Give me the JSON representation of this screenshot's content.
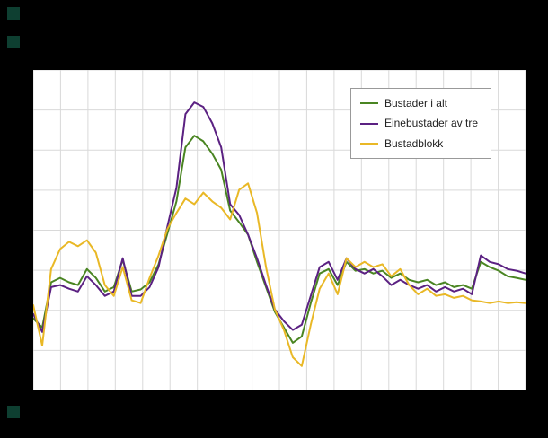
{
  "chart_data": {
    "type": "line",
    "title": "",
    "xlabel": "",
    "ylabel": "",
    "x_description": "time index, 56 evenly spaced points; no axis tick labels visible in the image",
    "ylim": [
      0,
      8
    ],
    "grid": {
      "show": true,
      "x_divisions": 18,
      "y_divisions": 8,
      "color": "#d9d9d9"
    },
    "legend_position": "top-right-inside",
    "series": [
      {
        "name": "Bustader i alt",
        "color": "#4a8522",
        "values": [
          1.8,
          1.57,
          2.7,
          2.81,
          2.7,
          2.63,
          3.03,
          2.81,
          2.47,
          2.58,
          3.26,
          2.47,
          2.52,
          2.7,
          3.15,
          3.93,
          4.72,
          6.07,
          6.36,
          6.22,
          5.91,
          5.51,
          4.49,
          4.2,
          3.89,
          3.21,
          2.58,
          1.96,
          1.57,
          1.19,
          1.35,
          2.18,
          2.92,
          3.03,
          2.63,
          3.21,
          2.99,
          3.03,
          2.92,
          2.99,
          2.81,
          2.92,
          2.76,
          2.7,
          2.76,
          2.63,
          2.7,
          2.58,
          2.63,
          2.54,
          3.21,
          3.08,
          2.99,
          2.85,
          2.81,
          2.76
        ]
      },
      {
        "name": "Einebustader av tre",
        "color": "#5b2182",
        "values": [
          1.91,
          1.46,
          2.58,
          2.63,
          2.54,
          2.47,
          2.85,
          2.63,
          2.36,
          2.47,
          3.3,
          2.36,
          2.36,
          2.58,
          3.08,
          4.11,
          5.06,
          6.9,
          7.19,
          7.08,
          6.67,
          6.07,
          4.65,
          4.38,
          3.89,
          3.3,
          2.63,
          2.02,
          1.73,
          1.51,
          1.64,
          2.36,
          3.08,
          3.21,
          2.76,
          3.3,
          3.03,
          2.92,
          3.03,
          2.85,
          2.63,
          2.76,
          2.63,
          2.54,
          2.63,
          2.47,
          2.58,
          2.47,
          2.54,
          2.4,
          3.37,
          3.21,
          3.15,
          3.03,
          2.99,
          2.92
        ]
      },
      {
        "name": "Bustadblokk",
        "color": "#e9b826",
        "values": [
          2.13,
          1.12,
          3.03,
          3.53,
          3.71,
          3.6,
          3.75,
          3.44,
          2.63,
          2.36,
          3.08,
          2.25,
          2.18,
          2.81,
          3.37,
          4.04,
          4.43,
          4.79,
          4.65,
          4.94,
          4.72,
          4.56,
          4.27,
          5.01,
          5.17,
          4.43,
          3.08,
          2.02,
          1.51,
          0.83,
          0.61,
          1.64,
          2.54,
          2.92,
          2.4,
          3.3,
          3.08,
          3.21,
          3.08,
          3.15,
          2.85,
          3.03,
          2.63,
          2.4,
          2.54,
          2.36,
          2.4,
          2.31,
          2.36,
          2.25,
          2.22,
          2.18,
          2.22,
          2.18,
          2.2,
          2.18
        ]
      }
    ]
  },
  "colors": {
    "figure_background": "#000000",
    "plot_background": "#ffffff",
    "legend_border": "#999999",
    "corner_mark": "#0e3f31"
  }
}
